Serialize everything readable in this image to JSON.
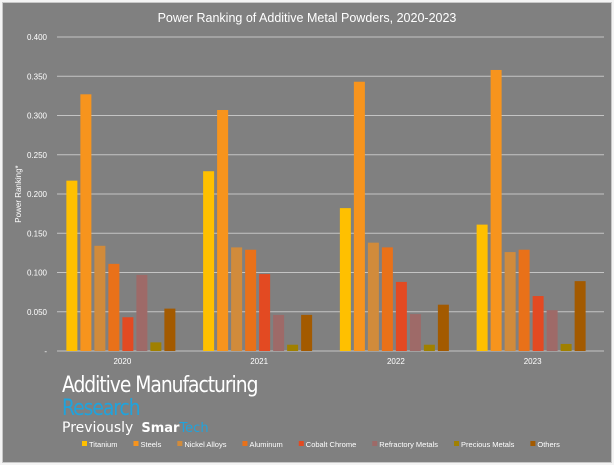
{
  "logo": {
    "line1": "Additive Manufacturing",
    "line2": "Research",
    "previously": "Previously",
    "brand_a": "Smar",
    "brand_b": "Tech"
  },
  "chart_data": {
    "type": "bar",
    "title": "Power Ranking of Additive Metal Powders, 2020-2023",
    "xlabel": "",
    "ylabel": "Power Ranking*",
    "ylim": [
      0,
      0.4
    ],
    "yticks": [
      "-",
      "0.050",
      "0.100",
      "0.150",
      "0.200",
      "0.250",
      "0.300",
      "0.350",
      "0.400"
    ],
    "grid": true,
    "legend": "bottom",
    "categories": [
      "2020",
      "2021",
      "2022",
      "2023"
    ],
    "series": [
      {
        "name": "Titanium",
        "color": "#FFC000",
        "values": [
          0.217,
          0.229,
          0.182,
          0.161
        ]
      },
      {
        "name": "Steels",
        "color": "#F7941D",
        "values": [
          0.327,
          0.307,
          0.343,
          0.358
        ]
      },
      {
        "name": "Nickel Alloys",
        "color": "#D18B3B",
        "values": [
          0.134,
          0.132,
          0.138,
          0.126
        ]
      },
      {
        "name": "Aluminum",
        "color": "#E97119",
        "values": [
          0.111,
          0.129,
          0.132,
          0.129
        ]
      },
      {
        "name": "Cobalt Chrome",
        "color": "#E34A22",
        "values": [
          0.043,
          0.098,
          0.088,
          0.07
        ]
      },
      {
        "name": "Refractory Metals",
        "color": "#9E6A68",
        "values": [
          0.097,
          0.046,
          0.047,
          0.052
        ]
      },
      {
        "name": "Precious Metals",
        "color": "#A08000",
        "values": [
          0.011,
          0.008,
          0.008,
          0.009
        ]
      },
      {
        "name": "Others",
        "color": "#A35A00",
        "values": [
          0.054,
          0.046,
          0.059,
          0.089
        ]
      }
    ]
  }
}
